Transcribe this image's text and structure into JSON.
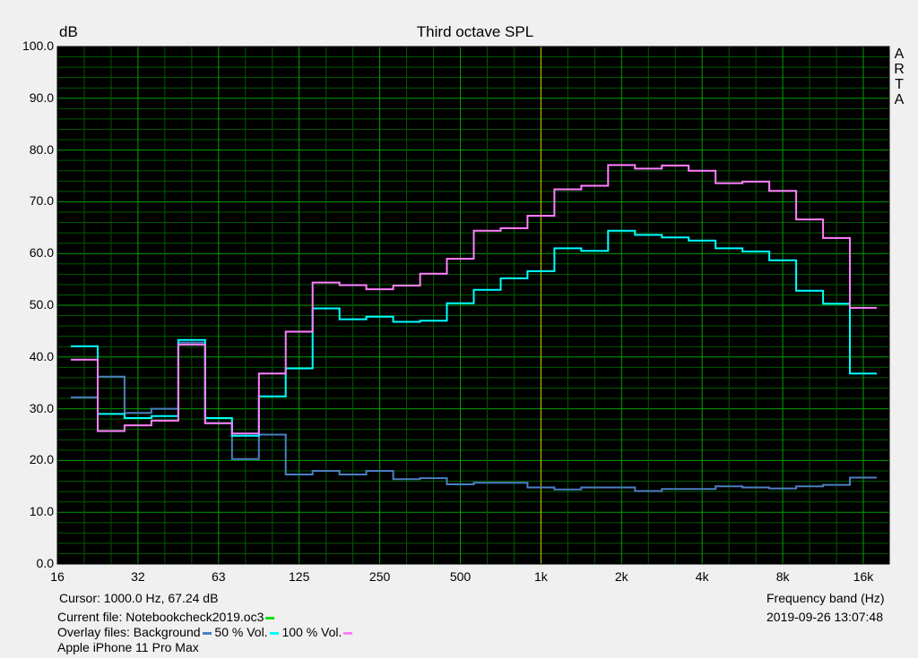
{
  "chart_data": {
    "type": "line",
    "step": true,
    "title": "Third octave SPL",
    "ylabel": "dB",
    "xlabel": "Frequency band (Hz)",
    "xscale": "log",
    "ylim": [
      0,
      100
    ],
    "xlim_hz": [
      16,
      20000
    ],
    "yticks": [
      "0.0",
      "10.0",
      "20.0",
      "30.0",
      "40.0",
      "50.0",
      "60.0",
      "70.0",
      "80.0",
      "90.0",
      "100.0"
    ],
    "xticks": [
      {
        "label": "16",
        "hz": 16
      },
      {
        "label": "32",
        "hz": 32
      },
      {
        "label": "63",
        "hz": 64
      },
      {
        "label": "125",
        "hz": 128
      },
      {
        "label": "250",
        "hz": 256
      },
      {
        "label": "500",
        "hz": 512
      },
      {
        "label": "1k",
        "hz": 1024
      },
      {
        "label": "2k",
        "hz": 2048
      },
      {
        "label": "4k",
        "hz": 4096
      },
      {
        "label": "8k",
        "hz": 8192
      },
      {
        "label": "16k",
        "hz": 16384
      }
    ],
    "grid": true,
    "cursor_hz_marker": 1000,
    "bands": [
      "20",
      "25",
      "31.5",
      "40",
      "50",
      "63",
      "80",
      "100",
      "125",
      "160",
      "200",
      "250",
      "315",
      "400",
      "500",
      "630",
      "800",
      "1k",
      "1.25k",
      "1.6k",
      "2k",
      "2.5k",
      "3.15k",
      "4k",
      "5k",
      "6.3k",
      "8k",
      "10k",
      "12.5k",
      "16k"
    ],
    "series": [
      {
        "name": "Background",
        "color": "#4a80c0",
        "values": [
          32.2,
          36.2,
          29.2,
          30.0,
          42.8,
          27.2,
          20.3,
          25.0,
          17.3,
          18.0,
          17.3,
          18.0,
          16.4,
          16.6,
          15.4,
          15.7,
          15.7,
          14.8,
          14.4,
          14.8,
          14.8,
          14.1,
          14.5,
          14.5,
          15.0,
          14.8,
          14.6,
          15.0,
          15.3,
          16.7
        ]
      },
      {
        "name": "50 % Vol.",
        "color": "#00ffff",
        "values": [
          42.1,
          29.0,
          28.2,
          28.6,
          43.3,
          28.2,
          24.8,
          32.4,
          37.8,
          49.4,
          47.3,
          47.8,
          46.8,
          47.0,
          50.4,
          53.0,
          55.2,
          56.6,
          61.0,
          60.5,
          64.4,
          63.6,
          63.1,
          62.5,
          61.0,
          60.4,
          58.7,
          52.8,
          50.3,
          36.8
        ]
      },
      {
        "name": "100 % Vol.",
        "color": "#ff80ff",
        "values": [
          39.5,
          25.7,
          26.8,
          27.7,
          42.4,
          27.2,
          25.2,
          36.8,
          44.9,
          54.4,
          53.9,
          53.1,
          53.8,
          56.1,
          59.0,
          64.4,
          64.9,
          67.3,
          72.4,
          73.1,
          77.1,
          76.4,
          77.0,
          76.0,
          73.6,
          73.9,
          72.1,
          66.6,
          63.0,
          49.5
        ]
      }
    ]
  },
  "watermark": "ARTA",
  "info": {
    "cursor": "Cursor:  1000.0 Hz, 67.24 dB",
    "current_file": "Current file: Notebookcheck2019.oc3",
    "current_color": "#00e000",
    "overlay_prefix": "Overlay files: Background",
    "overlay_50": "50 % Vol.",
    "overlay_100": "100 % Vol.",
    "device": "Apple iPhone 11 Pro Max",
    "timestamp": "2019-09-26  13:07:48"
  }
}
